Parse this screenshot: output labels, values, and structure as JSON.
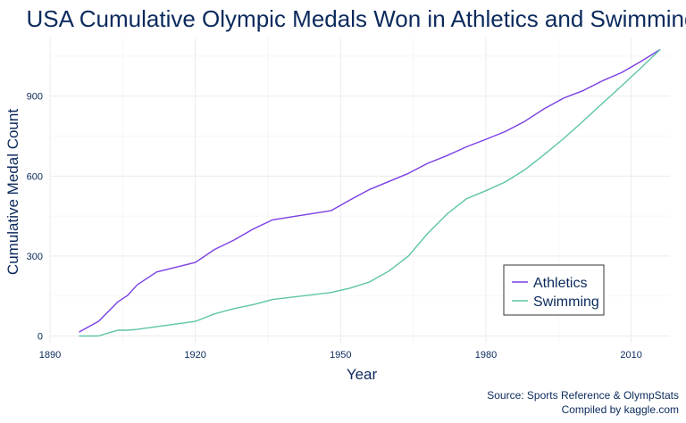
{
  "chart_data": {
    "type": "line",
    "title": "USA Cumulative Olympic Medals Won in Athletics and Swimming",
    "xlabel": "Year",
    "ylabel": "Cumulative Medal Count",
    "xlim": [
      1890,
      2018
    ],
    "ylim": [
      -25,
      1120
    ],
    "x_ticks": [
      1890,
      1920,
      1950,
      1980,
      2010
    ],
    "y_ticks": [
      0,
      300,
      600,
      900
    ],
    "grid": true,
    "legend_position": "bottom-right",
    "colors": {
      "Athletics": "#7b3fe4",
      "Swimming": "#5ec4a8",
      "text": "#0b2a5c"
    },
    "series": [
      {
        "name": "Athletics",
        "x": [
          1896,
          1900,
          1904,
          1906,
          1908,
          1912,
          1920,
          1924,
          1928,
          1932,
          1936,
          1948,
          1952,
          1956,
          1960,
          1964,
          1968,
          1972,
          1976,
          1980,
          1984,
          1988,
          1992,
          1996,
          2000,
          2004,
          2008,
          2012,
          2016
        ],
        "y": [
          15,
          55,
          128,
          152,
          192,
          240,
          276,
          325,
          360,
          402,
          436,
          470,
          511,
          550,
          580,
          610,
          648,
          677,
          710,
          738,
          767,
          805,
          852,
          892,
          920,
          957,
          988,
          1030,
          1075
        ]
      },
      {
        "name": "Swimming",
        "x": [
          1896,
          1900,
          1904,
          1906,
          1908,
          1912,
          1920,
          1924,
          1928,
          1932,
          1936,
          1948,
          1952,
          1956,
          1960,
          1964,
          1968,
          1972,
          1976,
          1980,
          1984,
          1988,
          1992,
          1996,
          2000,
          2004,
          2008,
          2012,
          2016
        ],
        "y": [
          0,
          0,
          22,
          22,
          25,
          35,
          55,
          83,
          103,
          118,
          137,
          163,
          180,
          203,
          244,
          300,
          385,
          458,
          515,
          545,
          578,
          623,
          680,
          740,
          805,
          872,
          938,
          1006,
          1075
        ]
      }
    ],
    "caption_lines": [
      "Source: Sports Reference & OlympStats",
      "Compiled by kaggle.com"
    ]
  }
}
